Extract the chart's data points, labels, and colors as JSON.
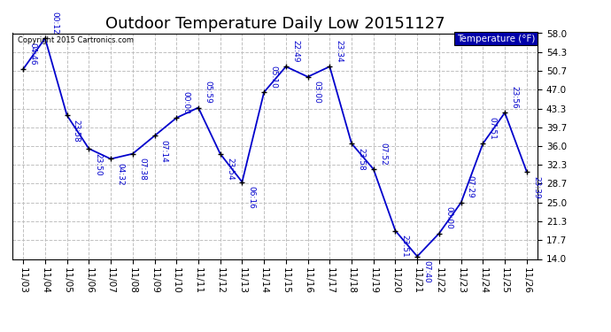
{
  "title": "Outdoor Temperature Daily Low 20151127",
  "copyright_text": "Copyright 2015 Cartronics.com",
  "legend_label": "Temperature (°F)",
  "dates": [
    "11/03",
    "11/04",
    "11/05",
    "11/06",
    "11/07",
    "11/08",
    "11/09",
    "11/10",
    "11/11",
    "11/12",
    "11/13",
    "11/14",
    "11/15",
    "11/16",
    "11/17",
    "11/18",
    "11/19",
    "11/20",
    "11/21",
    "11/22",
    "11/23",
    "11/24",
    "11/25",
    "11/26"
  ],
  "temperatures": [
    51.0,
    57.0,
    42.0,
    35.5,
    33.5,
    34.5,
    38.0,
    41.5,
    43.5,
    34.5,
    29.0,
    46.5,
    51.5,
    49.5,
    51.5,
    36.5,
    31.5,
    19.5,
    14.5,
    19.0,
    25.0,
    36.5,
    42.5,
    31.0
  ],
  "annotations": [
    "04:46",
    "00:12",
    "23:58",
    "23:50",
    "04:32",
    "07:38",
    "07:14",
    "00:00",
    "05:59",
    "23:54",
    "06:16",
    "05:10",
    "22:49",
    "03:00",
    "23:34",
    "23:58",
    "07:52",
    "23:51",
    "07:40",
    "00:00",
    "07:29",
    "07:51",
    "23:56",
    "23:39"
  ],
  "line_color": "#0000cc",
  "marker_color": "#000000",
  "annotation_color": "#0000cc",
  "grid_color": "#c0c0c0",
  "background_color": "#ffffff",
  "ylim_min": 14.0,
  "ylim_max": 58.0,
  "yticks": [
    14.0,
    17.7,
    21.3,
    25.0,
    28.7,
    32.3,
    36.0,
    39.7,
    43.3,
    47.0,
    50.7,
    54.3,
    58.0
  ],
  "title_fontsize": 13,
  "annotation_fontsize": 6.5,
  "tick_fontsize": 7.5,
  "legend_bg_color": "#0000aa",
  "legend_text_color": "#ffffff"
}
